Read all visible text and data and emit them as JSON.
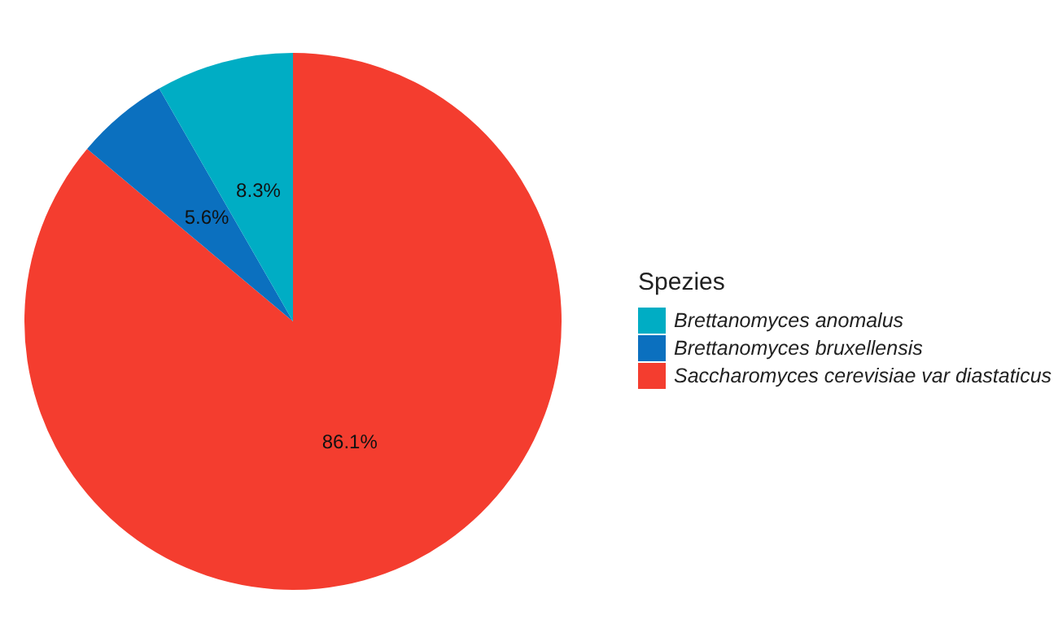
{
  "chart_data": {
    "type": "pie",
    "legend_title": "Spezies",
    "legend": "right",
    "categories": [
      "Brettanomyces anomalus",
      "Brettanomyces bruxellensis",
      "Saccharomyces cerevisiae var diastaticus"
    ],
    "values": [
      8.3,
      5.6,
      86.1
    ],
    "value_labels": [
      "8.3%",
      "5.6%",
      "86.1%"
    ],
    "colors": [
      "#00adc4",
      "#0b70bf",
      "#f43d2f"
    ]
  }
}
